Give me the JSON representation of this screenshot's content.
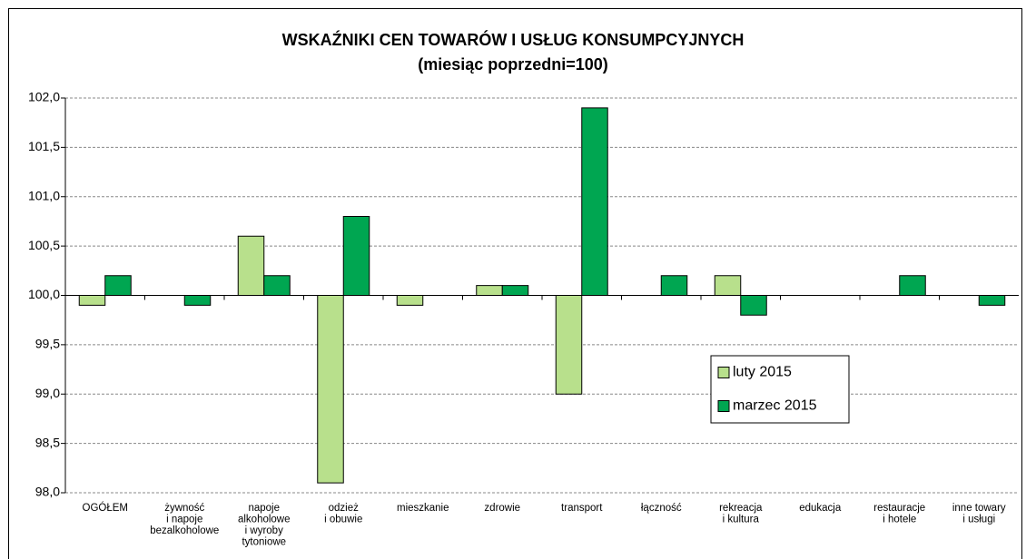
{
  "chart_data": {
    "type": "bar",
    "title": "WSKAŹNIKI CEN TOWARÓW I USŁUG KONSUMPCYJNYCH",
    "subtitle": "(miesiąc poprzedni=100)",
    "categories": [
      "OGÓŁEM",
      "żywność\ni napoje\nbezalkoholowe",
      "napoje\nalkoholowe\ni wyroby\ntytoniowe",
      "odzież\ni obuwie",
      "mieszkanie",
      "zdrowie",
      "transport",
      "łączność",
      "rekreacja\ni kultura",
      "edukacja",
      "restauracje\ni hotele",
      "inne towary\ni usługi"
    ],
    "series": [
      {
        "name": "luty 2015",
        "color": "#b8e08c",
        "values": [
          99.9,
          100.0,
          100.6,
          98.1,
          99.9,
          100.1,
          99.0,
          100.0,
          100.2,
          100.0,
          100.0,
          100.0
        ]
      },
      {
        "name": "marzec 2015",
        "color": "#00a651",
        "values": [
          100.2,
          99.9,
          100.2,
          100.8,
          100.0,
          100.1,
          101.9,
          100.2,
          99.8,
          100.0,
          100.2,
          99.9
        ]
      }
    ],
    "baseline": 100,
    "ylim": [
      98,
      102
    ],
    "yticks": [
      {
        "value": 98,
        "label": "98,0"
      },
      {
        "value": 98.5,
        "label": "98,5"
      },
      {
        "value": 99,
        "label": "99,0"
      },
      {
        "value": 99.5,
        "label": "99,5"
      },
      {
        "value": 100,
        "label": "100,0"
      },
      {
        "value": 100.5,
        "label": "100,5"
      },
      {
        "value": 101,
        "label": "101,0"
      },
      {
        "value": 101.5,
        "label": "101,5"
      },
      {
        "value": 102,
        "label": "102,0"
      }
    ],
    "grid": true,
    "legend": "right"
  }
}
